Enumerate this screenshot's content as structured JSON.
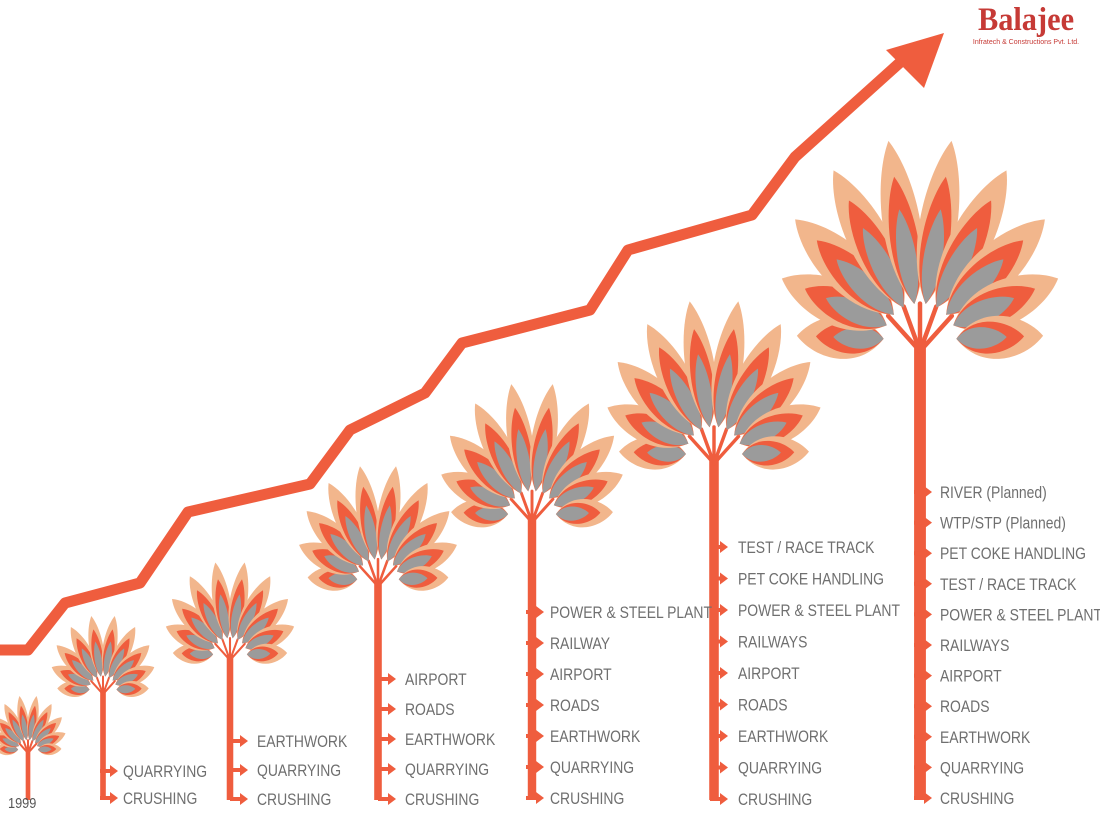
{
  "brand": {
    "name": "Balajee",
    "tagline": "Infratech & Constructions Pvt. Ltd."
  },
  "start_year": "1999",
  "colors": {
    "accent": "#ef5d3e",
    "light": "#f2b68c",
    "grey": "#9b9b9b",
    "label": "#6f6f6f"
  },
  "stages": [
    {
      "services": []
    },
    {
      "services": [
        "QUARRYING",
        "CRUSHING"
      ]
    },
    {
      "services": [
        "EARTHWORK",
        "QUARRYING",
        "CRUSHING"
      ]
    },
    {
      "services": [
        "AIRPORT",
        "ROADS",
        "EARTHWORK",
        "QUARRYING",
        "CRUSHING"
      ]
    },
    {
      "services": [
        "POWER & STEEL PLANT",
        "RAILWAY",
        "AIRPORT",
        "ROADS",
        "EARTHWORK",
        "QUARRYING",
        "CRUSHING"
      ]
    },
    {
      "services": [
        "TEST / RACE TRACK",
        "PET COKE HANDLING",
        "POWER & STEEL PLANT",
        "RAILWAYS",
        "AIRPORT",
        "ROADS",
        "EARTHWORK",
        "QUARRYING",
        "CRUSHING"
      ]
    },
    {
      "services": [
        "RIVER (Planned)",
        "WTP/STP (Planned)",
        "PET COKE HANDLING",
        "TEST / RACE TRACK",
        "POWER & STEEL PLANT",
        "RAILWAYS",
        "AIRPORT",
        "ROADS",
        "EARTHWORK",
        "QUARRYING",
        "CRUSHING"
      ]
    }
  ]
}
